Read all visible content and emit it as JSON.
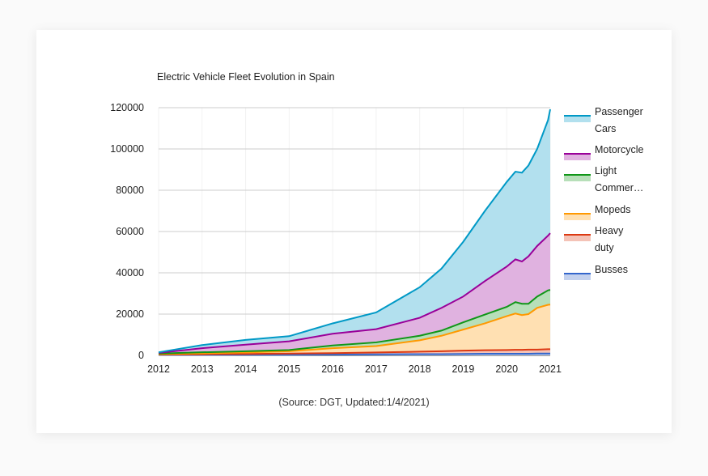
{
  "chart_data": {
    "type": "area",
    "stacked": true,
    "title": "Electric Vehicle Fleet Evolution in Spain",
    "source_note": "(Source: DGT, Updated:1/4/2021)",
    "xlabel": "",
    "ylabel": "",
    "xlim": [
      2012,
      2021
    ],
    "ylim": [
      0,
      120000
    ],
    "x_ticks": [
      "2012",
      "2013",
      "2014",
      "2015",
      "2016",
      "2017",
      "2018",
      "2019",
      "2020",
      "2021"
    ],
    "y_ticks": [
      "0",
      "20000",
      "40000",
      "60000",
      "80000",
      "100000",
      "120000"
    ],
    "grid": true,
    "legend_position": "right",
    "x": [
      2012,
      2013,
      2014,
      2015,
      2016,
      2017,
      2018,
      2018.5,
      2019,
      2019.5,
      2020,
      2020.2,
      2020.35,
      2020.5,
      2020.7,
      2020.95,
      2021
    ],
    "series": [
      {
        "name": "Busses",
        "color": "#3366cc",
        "fill": "#c3d1ee",
        "values": [
          200,
          200,
          300,
          300,
          400,
          500,
          600,
          600,
          700,
          800,
          800,
          800,
          800,
          800,
          900,
          900,
          900
        ]
      },
      {
        "name": "Heavy duty",
        "color": "#dc3912",
        "fill": "#f4c3b7",
        "values": [
          200,
          300,
          400,
          600,
          700,
          900,
          1200,
          1400,
          1600,
          1700,
          1800,
          1900,
          1900,
          2000,
          1900,
          2100,
          2100
        ]
      },
      {
        "name": "Mopeds",
        "color": "#ff9900",
        "fill": "#ffe0b2",
        "values": [
          200,
          500,
          700,
          1100,
          2400,
          3100,
          5500,
          7500,
          10200,
          13000,
          16400,
          17600,
          16800,
          17200,
          20200,
          21500,
          21600
        ]
      },
      {
        "name": "Light Commer…",
        "color": "#109618",
        "fill": "#b7dfb9",
        "values": [
          300,
          500,
          600,
          600,
          1300,
          1800,
          2200,
          2500,
          3500,
          4300,
          4500,
          5500,
          5500,
          5000,
          5500,
          7000,
          7100
        ]
      },
      {
        "name": "Motorcycle",
        "color": "#990099",
        "fill": "#e0b2e0",
        "values": [
          300,
          2000,
          3200,
          4200,
          5700,
          6400,
          8700,
          11000,
          12500,
          16200,
          19500,
          20700,
          20500,
          23000,
          24500,
          26500,
          27500
        ]
      },
      {
        "name": "Passenger Cars",
        "color": "#0099c6",
        "fill": "#b2e0ee",
        "values": [
          300,
          1500,
          2300,
          2500,
          5000,
          8100,
          14800,
          19000,
          26500,
          34000,
          41000,
          42500,
          43000,
          44000,
          47000,
          56000,
          60000
        ]
      }
    ],
    "legend_order": [
      {
        "line1": "Passenger",
        "line2": "Cars",
        "color": "#0099c6",
        "fill": "#b2e0ee"
      },
      {
        "line1": "Motorcycle",
        "line2": "",
        "color": "#990099",
        "fill": "#e0b2e0"
      },
      {
        "line1": "Light",
        "line2": "Commer…",
        "color": "#109618",
        "fill": "#b7dfb9"
      },
      {
        "line1": "Mopeds",
        "line2": "",
        "color": "#ff9900",
        "fill": "#ffe0b2"
      },
      {
        "line1": "Heavy",
        "line2": "duty",
        "color": "#dc3912",
        "fill": "#f4c3b7"
      },
      {
        "line1": "Busses",
        "line2": "",
        "color": "#3366cc",
        "fill": "#c3d1ee"
      }
    ]
  }
}
